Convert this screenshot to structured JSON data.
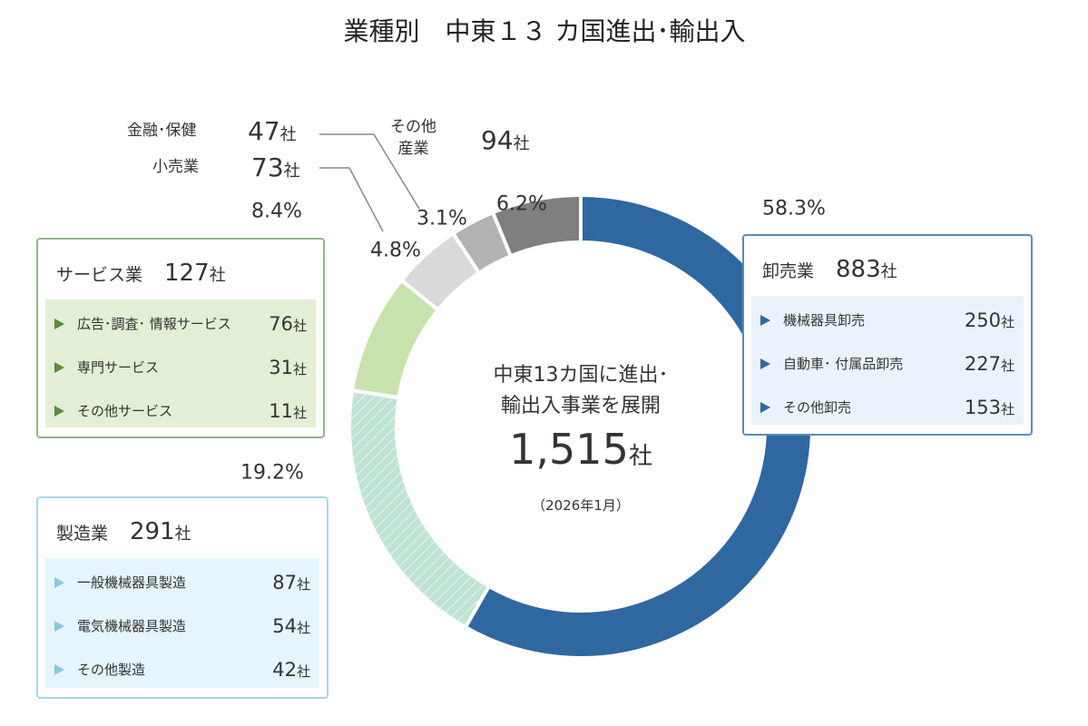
{
  "chart_data": {
    "type": "pie",
    "donut": true,
    "title": "業種別　中東１３ カ国進出･輸出入",
    "center": {
      "lines": [
        "中東13カ国に進出･",
        "輸出入事業を展開"
      ],
      "total": {
        "value": 1515,
        "label": "1,515"
      },
      "note": "（2026年1月）"
    },
    "unit": "社",
    "categories": [
      "卸売業",
      "製造業",
      "サービス業",
      "小売業",
      "金融･保健",
      "その他\n産業"
    ],
    "values": [
      58.3,
      19.2,
      8.4,
      4.8,
      3.1,
      6.2
    ],
    "value_labels": [
      "58.3%",
      "19.2%",
      "8.4%",
      "4.8%",
      "3.1%",
      "6.2%"
    ],
    "counts": [
      883,
      291,
      127,
      73,
      47,
      94
    ],
    "colors": [
      "#2f67a0",
      "#bfe3d3",
      "#c8e2ad",
      "#d9d9d9",
      "#b3b3b3",
      "#7f7f7f"
    ],
    "hatched": [
      false,
      true,
      false,
      false,
      false,
      false
    ],
    "details": [
      {
        "items": [
          {
            "name": "機械器具卸売",
            "count": 250
          },
          {
            "name": "自動車･\n付属品卸売",
            "count": 227
          },
          {
            "name": "その他卸売",
            "count": 153
          }
        ]
      },
      {
        "items": [
          {
            "name": "一般機械器具製造",
            "count": 87
          },
          {
            "name": "電気機械器具製造",
            "count": 54
          },
          {
            "name": "その他製造",
            "count": 42
          }
        ]
      },
      {
        "items": [
          {
            "name": "広告･調査･\n情報サービス",
            "count": 76
          },
          {
            "name": "専門サービス",
            "count": 31
          },
          {
            "name": "その他サービス",
            "count": 11
          }
        ]
      },
      null,
      null,
      null
    ]
  }
}
